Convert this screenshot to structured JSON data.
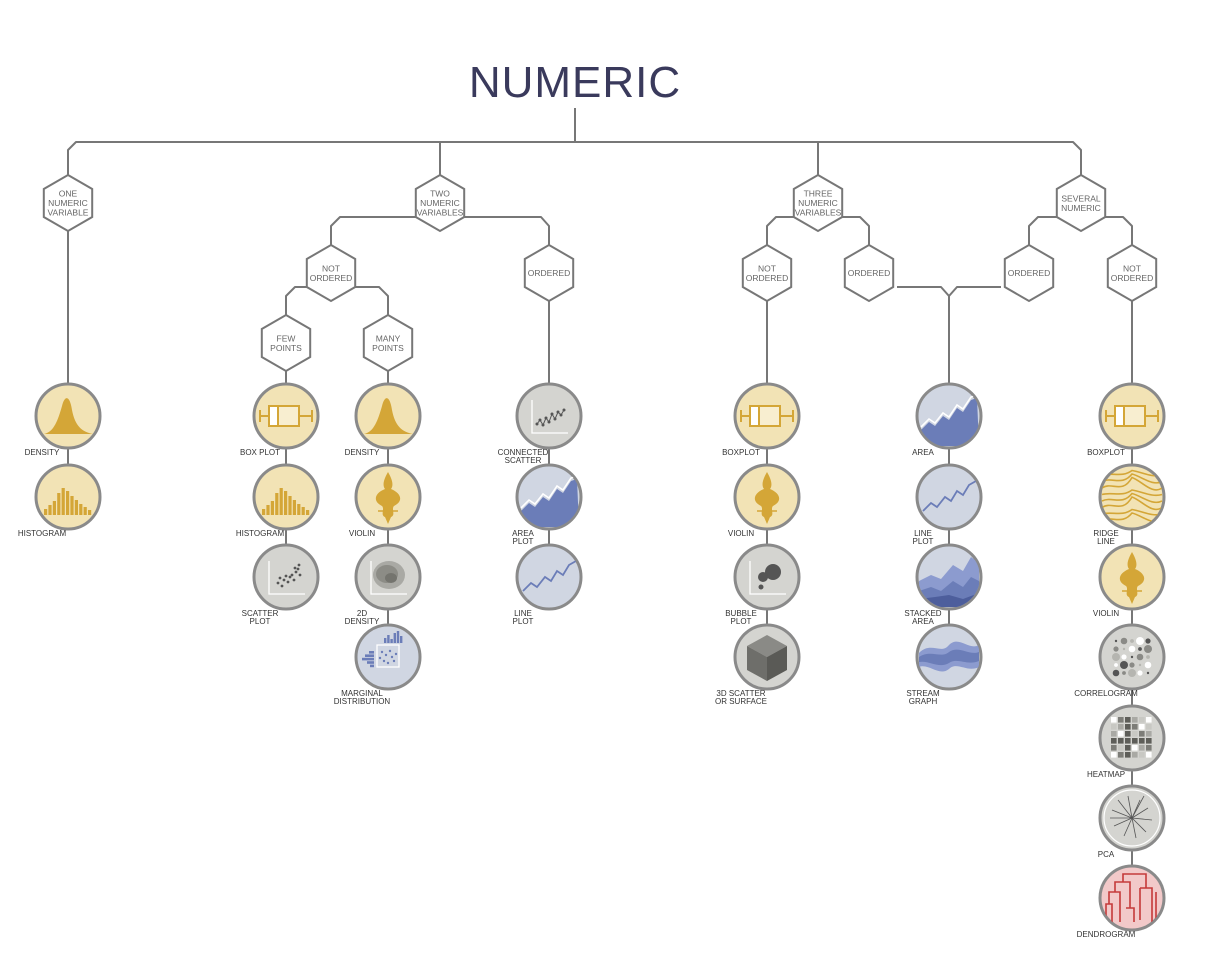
{
  "title": "NUMERIC",
  "colors": {
    "line": "#777777",
    "yellow_fill": "#f2e3b5",
    "yellow_mark": "#d4a637",
    "grey_fill": "#d4d4d0",
    "blue_fill": "#d0d6e2",
    "blue_mark": "#6b7db8",
    "red_fill": "#f2c9c9",
    "red_mark": "#c53a3a",
    "title": "#3a3a5c"
  },
  "category_nodes": [
    {
      "id": "one",
      "lines": [
        "ONE",
        "NUMERIC",
        "VARIABLE"
      ]
    },
    {
      "id": "two",
      "lines": [
        "TWO",
        "NUMERIC",
        "VARIABLES"
      ]
    },
    {
      "id": "three",
      "lines": [
        "THREE",
        "NUMERIC",
        "VARIABLES"
      ]
    },
    {
      "id": "several",
      "lines": [
        "SEVERAL",
        "NUMERIC"
      ]
    },
    {
      "id": "two_notord",
      "lines": [
        "NOT",
        "ORDERED"
      ]
    },
    {
      "id": "two_ord",
      "lines": [
        "ORDERED"
      ]
    },
    {
      "id": "few",
      "lines": [
        "FEW",
        "POINTS"
      ]
    },
    {
      "id": "many",
      "lines": [
        "MANY",
        "POINTS"
      ]
    },
    {
      "id": "three_notord",
      "lines": [
        "NOT",
        "ORDERED"
      ]
    },
    {
      "id": "three_ord",
      "lines": [
        "ORDERED"
      ]
    },
    {
      "id": "sev_ord",
      "lines": [
        "ORDERED"
      ]
    },
    {
      "id": "sev_notord",
      "lines": [
        "NOT",
        "ORDERED"
      ]
    }
  ],
  "chart_types": [
    {
      "id": "c1_density",
      "icon": "density-icon",
      "theme": "yellow",
      "label": [
        "DENSITY"
      ]
    },
    {
      "id": "c1_histogram",
      "icon": "histogram-icon",
      "theme": "yellow",
      "label": [
        "HISTOGRAM"
      ]
    },
    {
      "id": "few_boxplot",
      "icon": "boxplot-icon",
      "theme": "yellow",
      "label": [
        "BOX PLOT"
      ]
    },
    {
      "id": "few_histogram",
      "icon": "histogram-icon",
      "theme": "yellow",
      "label": [
        "HISTOGRAM"
      ]
    },
    {
      "id": "few_scatter",
      "icon": "scatter-icon",
      "theme": "grey",
      "label": [
        "SCATTER",
        "PLOT"
      ]
    },
    {
      "id": "many_density",
      "icon": "density-icon",
      "theme": "yellow",
      "label": [
        "DENSITY"
      ]
    },
    {
      "id": "many_violin",
      "icon": "violin-icon",
      "theme": "yellow",
      "label": [
        "VIOLIN"
      ]
    },
    {
      "id": "many_2d",
      "icon": "2d-density-icon",
      "theme": "grey",
      "label": [
        "2D",
        "DENSITY"
      ]
    },
    {
      "id": "many_marginal",
      "icon": "marginal-icon",
      "theme": "blue",
      "label": [
        "MARGINAL",
        "DISTRIBUTION"
      ]
    },
    {
      "id": "ord_connected",
      "icon": "connected-scatter-icon",
      "theme": "grey",
      "label": [
        "CONNECTED",
        "SCATTER"
      ]
    },
    {
      "id": "ord_area",
      "icon": "area-icon",
      "theme": "blue",
      "label": [
        "AREA",
        "PLOT"
      ]
    },
    {
      "id": "ord_line",
      "icon": "line-icon",
      "theme": "blue",
      "label": [
        "LINE",
        "PLOT"
      ]
    },
    {
      "id": "t_boxplot",
      "icon": "boxplot-icon",
      "theme": "yellow",
      "label": [
        "BOXPLOT"
      ]
    },
    {
      "id": "t_violin",
      "icon": "violin-icon",
      "theme": "yellow",
      "label": [
        "VIOLIN"
      ]
    },
    {
      "id": "t_bubble",
      "icon": "bubble-icon",
      "theme": "grey",
      "label": [
        "BUBBLE",
        "PLOT"
      ]
    },
    {
      "id": "t_3d",
      "icon": "cube-icon",
      "theme": "grey",
      "label": [
        "3D SCATTER",
        "OR SURFACE"
      ]
    },
    {
      "id": "m_area",
      "icon": "area-icon",
      "theme": "blue",
      "label": [
        "AREA"
      ]
    },
    {
      "id": "m_line",
      "icon": "line-icon",
      "theme": "blue",
      "label": [
        "LINE",
        "PLOT"
      ]
    },
    {
      "id": "m_stacked",
      "icon": "stacked-area-icon",
      "theme": "blue",
      "label": [
        "STACKED",
        "AREA"
      ]
    },
    {
      "id": "m_stream",
      "icon": "stream-icon",
      "theme": "blue",
      "label": [
        "STREAM",
        "GRAPH"
      ]
    },
    {
      "id": "s_boxplot",
      "icon": "boxplot-icon",
      "theme": "yellow",
      "label": [
        "BOXPLOT"
      ]
    },
    {
      "id": "s_ridge",
      "icon": "ridgeline-icon",
      "theme": "yellow",
      "label": [
        "RIDGE",
        "LINE"
      ]
    },
    {
      "id": "s_violin",
      "icon": "violin-icon",
      "theme": "yellow",
      "label": [
        "VIOLIN"
      ]
    },
    {
      "id": "s_correlogram",
      "icon": "correlogram-icon",
      "theme": "grey",
      "label": [
        "CORRELOGRAM"
      ]
    },
    {
      "id": "s_heatmap",
      "icon": "heatmap-icon",
      "theme": "grey",
      "label": [
        "HEATMAP"
      ]
    },
    {
      "id": "s_pca",
      "icon": "pca-icon",
      "theme": "grey",
      "label": [
        "PCA"
      ]
    },
    {
      "id": "s_dendrogram",
      "icon": "dendrogram-icon",
      "theme": "red",
      "label": [
        "DENDROGRAM"
      ]
    }
  ]
}
